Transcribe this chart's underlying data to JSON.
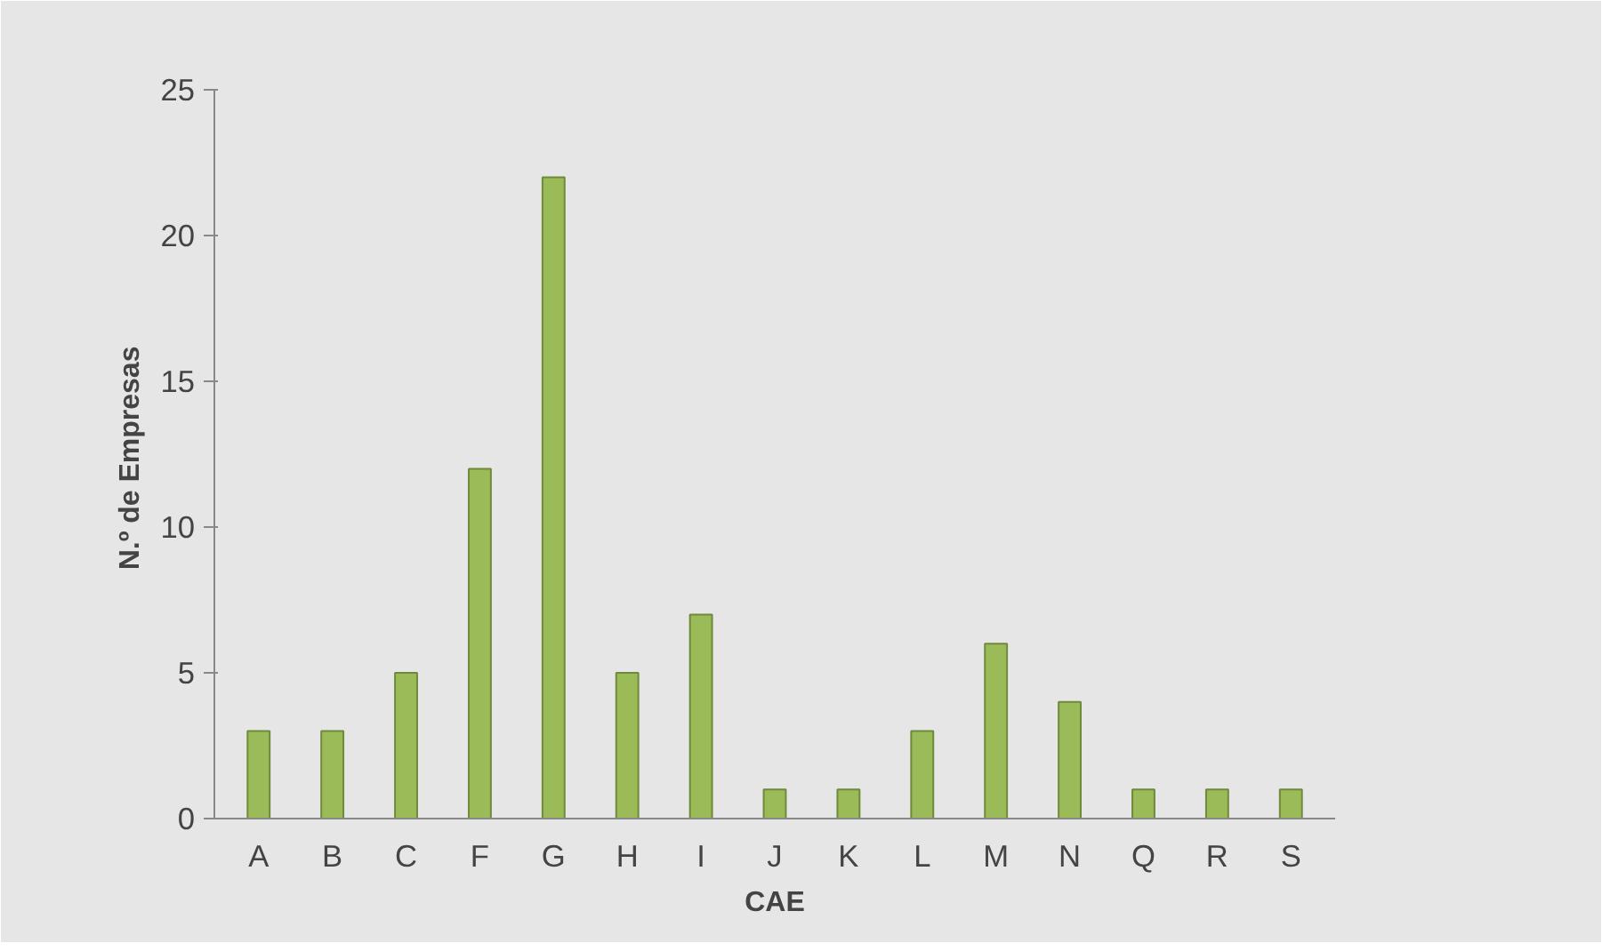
{
  "chart_data": {
    "type": "bar",
    "xlabel": "CAE",
    "ylabel": "N.º  de Empresas",
    "categories": [
      "A",
      "B",
      "C",
      "F",
      "G",
      "H",
      "I",
      "J",
      "K",
      "L",
      "M",
      "N",
      "Q",
      "R",
      "S"
    ],
    "values": [
      3,
      3,
      5,
      12,
      22,
      5,
      7,
      1,
      1,
      3,
      6,
      4,
      1,
      1,
      1
    ],
    "color": "#9bbb59",
    "ylim": [
      0,
      25
    ],
    "yticks": [
      0,
      5,
      10,
      15,
      20,
      25
    ]
  }
}
